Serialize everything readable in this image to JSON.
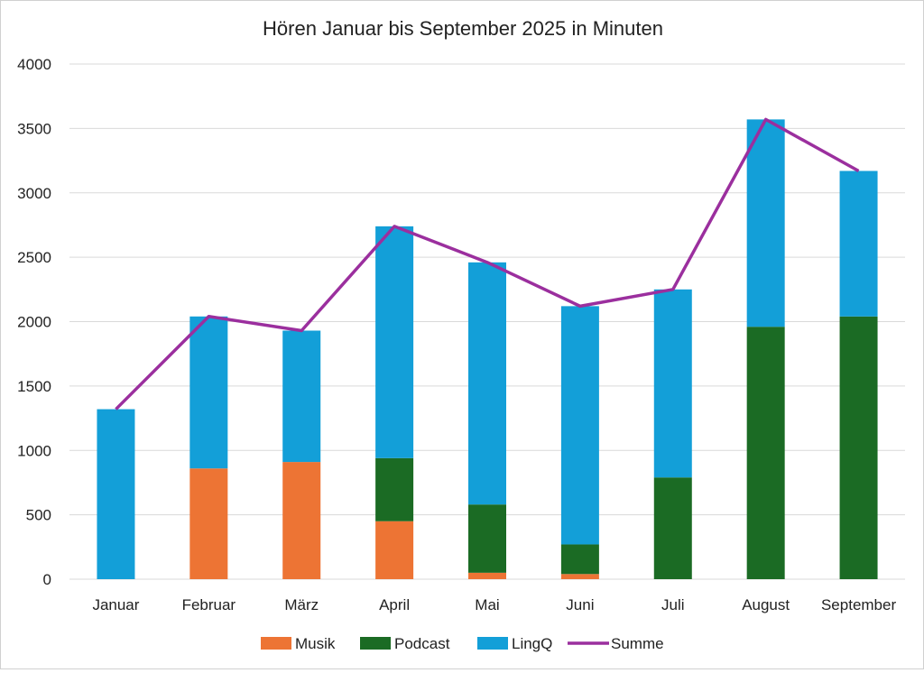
{
  "chart_data": {
    "type": "bar",
    "stacked": true,
    "title": "Hören Januar bis September 2025 in Minuten",
    "categories": [
      "Januar",
      "Februar",
      "März",
      "April",
      "Mai",
      "Juni",
      "Juli",
      "August",
      "September"
    ],
    "series": [
      {
        "name": "Musik",
        "color": "#ED7434",
        "values": [
          0,
          860,
          910,
          450,
          50,
          40,
          0,
          0,
          0
        ]
      },
      {
        "name": "Podcast",
        "color": "#1B6B24",
        "values": [
          0,
          0,
          0,
          490,
          530,
          230,
          790,
          1960,
          2040
        ]
      },
      {
        "name": "LingQ",
        "color": "#139FD8",
        "values": [
          1320,
          1180,
          1020,
          1800,
          1880,
          1850,
          1460,
          1610,
          1130
        ]
      }
    ],
    "line_series": {
      "name": "Summe",
      "color": "#9B2F9E",
      "type": "line",
      "values": [
        1320,
        2040,
        1930,
        2740,
        2460,
        2120,
        2250,
        3570,
        3170
      ]
    },
    "ylim": [
      0,
      4000
    ],
    "yticks": [
      0,
      500,
      1000,
      1500,
      2000,
      2500,
      3000,
      3500,
      4000
    ],
    "xlabel": "",
    "ylabel": "",
    "grid": true,
    "legend_position": "bottom"
  }
}
